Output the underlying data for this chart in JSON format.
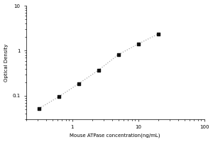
{
  "x": [
    0.313,
    0.625,
    1.25,
    2.5,
    5,
    10,
    20
  ],
  "y": [
    0.052,
    0.095,
    0.185,
    0.37,
    0.82,
    1.42,
    2.35
  ],
  "xlabel": "Mouse ATPase concentration(ng/mL)",
  "ylabel": "Optical Density",
  "xlim": [
    0.2,
    100
  ],
  "ylim": [
    0.03,
    10
  ],
  "line_color": "#aaaaaa",
  "marker_color": "#111111",
  "background_color": "#ffffff",
  "axis_fontsize": 5,
  "tick_fontsize": 5
}
